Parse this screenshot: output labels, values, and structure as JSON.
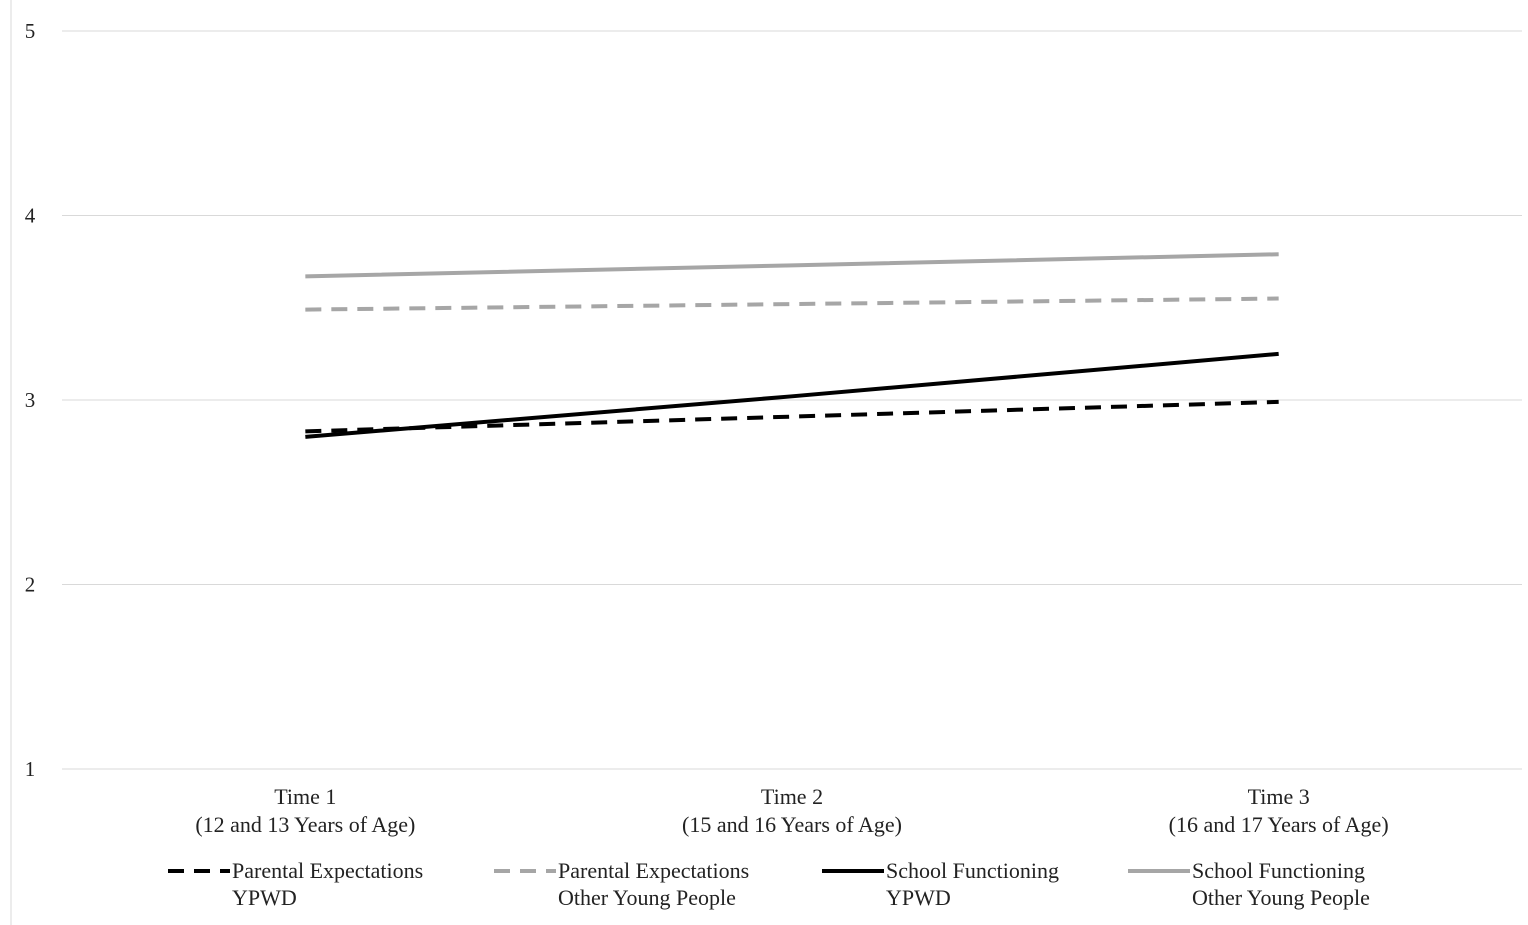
{
  "chart_data": {
    "type": "line",
    "title": "",
    "xlabel": "",
    "ylabel": "",
    "ylim": [
      1,
      5
    ],
    "yticks": [
      "1",
      "2",
      "3",
      "4",
      "5"
    ],
    "grid": true,
    "legend_position": "bottom",
    "categories": [
      {
        "line1": "Time 1",
        "line2": "(12 and 13 Years of Age)"
      },
      {
        "line1": "Time 2",
        "line2": "(15 and 16 Years of Age)"
      },
      {
        "line1": "Time 3",
        "line2": "(16 and 17 Years of Age)"
      }
    ],
    "series": [
      {
        "name": "Parental Expectations YPWD",
        "label_line1": "Parental Expectations",
        "label_line2": "YPWD",
        "color": "#000000",
        "dashed": true,
        "values": [
          2.83,
          2.91,
          2.99
        ]
      },
      {
        "name": "Parental Expectations Other Young People",
        "label_line1": "Parental Expectations",
        "label_line2": "Other Young People",
        "color": "#a6a6a6",
        "dashed": true,
        "values": [
          3.49,
          3.52,
          3.55
        ]
      },
      {
        "name": "School Functioning YPWD",
        "label_line1": "School Functioning",
        "label_line2": "YPWD",
        "color": "#000000",
        "dashed": false,
        "values": [
          2.8,
          3.02,
          3.25
        ]
      },
      {
        "name": "School Functioning Other Young People",
        "label_line1": "School Functioning",
        "label_line2": "Other Young People",
        "color": "#a6a6a6",
        "dashed": false,
        "values": [
          3.67,
          3.73,
          3.79
        ]
      }
    ]
  }
}
